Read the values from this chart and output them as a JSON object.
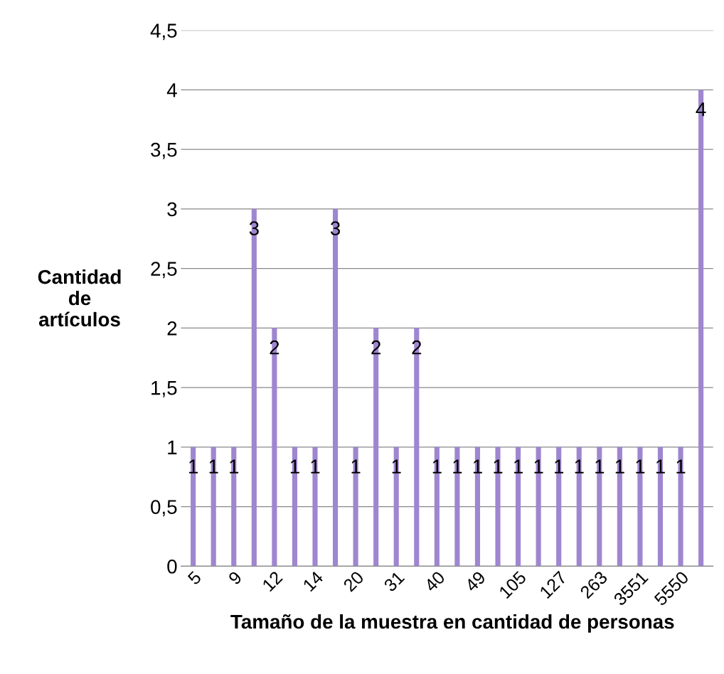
{
  "chart_data": {
    "type": "bar",
    "ylabel": "Cantidad\nde\nartículos",
    "xlabel": "Tamaño de la muestra en cantidad de personas",
    "categories": [
      "5",
      null,
      "9",
      null,
      "12",
      null,
      "14",
      null,
      "20",
      null,
      "31",
      null,
      "40",
      null,
      "49",
      null,
      "105",
      null,
      "127",
      null,
      "263",
      null,
      "3551",
      null,
      "5550",
      null
    ],
    "values": [
      1,
      1,
      1,
      3,
      2,
      1,
      1,
      3,
      1,
      2,
      1,
      2,
      1,
      1,
      1,
      1,
      1,
      1,
      1,
      1,
      1,
      1,
      1,
      1,
      1,
      4
    ],
    "color": "#9f86d0",
    "ylim": [
      0,
      4.5
    ],
    "yticks": [
      {
        "value": 0,
        "label": "0"
      },
      {
        "value": 0.5,
        "label": "0,5"
      },
      {
        "value": 1,
        "label": "1"
      },
      {
        "value": 1.5,
        "label": "1,5"
      },
      {
        "value": 2,
        "label": "2"
      },
      {
        "value": 2.5,
        "label": "2,5"
      },
      {
        "value": 3,
        "label": "3"
      },
      {
        "value": 3.5,
        "label": "3,5"
      },
      {
        "value": 4,
        "label": "4"
      },
      {
        "value": 4.5,
        "label": "4,5"
      }
    ],
    "grid": "y",
    "data_labels": true
  }
}
